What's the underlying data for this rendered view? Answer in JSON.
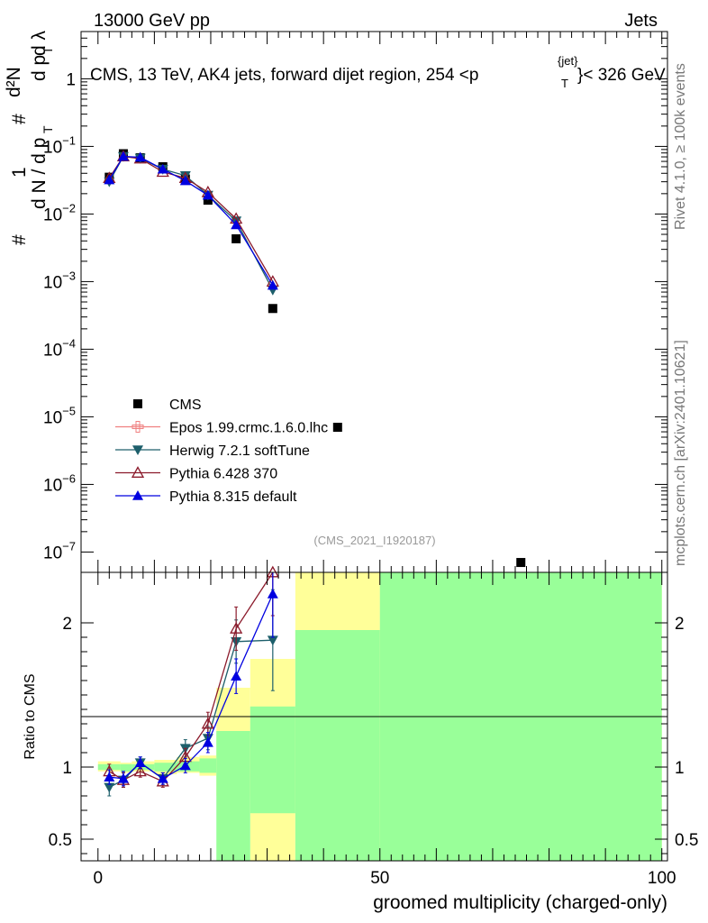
{
  "header": {
    "energy_label": "13000 GeV pp",
    "category_label": "Jets"
  },
  "side_labels": {
    "rivet": "Rivet 4.1.0, ≥ 100k events",
    "mcplots": "mcplots.cern.ch [arXiv:2401.10621]"
  },
  "chart_data": [
    {
      "type": "scatter",
      "panel": "main",
      "title": "CMS, 13 TeV, AK4 jets, forward dijet region, 254 <p",
      "title_sup": "{jet}",
      "title_sub": "T",
      "title_end": "}< 326 GeV",
      "watermark": "(CMS_2021_I1920187)",
      "ylabel": "1/N dN/dλ",
      "yscale": "log",
      "ylim": [
        5e-08,
        5
      ],
      "xlim": [
        -3,
        101
      ],
      "yticks": [
        {
          "value": 1e-07,
          "base": "10",
          "exp": "−7"
        },
        {
          "value": 1e-06,
          "base": "10",
          "exp": "−6"
        },
        {
          "value": 1e-05,
          "base": "10",
          "exp": "−5"
        },
        {
          "value": 0.0001,
          "base": "10",
          "exp": "−4"
        },
        {
          "value": 0.001,
          "base": "10",
          "exp": "−3"
        },
        {
          "value": 0.01,
          "base": "10",
          "exp": "−2"
        },
        {
          "value": 0.1,
          "base": "10",
          "exp": "−1"
        },
        {
          "value": 1,
          "base": "1",
          "exp": ""
        }
      ],
      "legend": [
        {
          "label": "CMS",
          "color": "#000000",
          "marker": "square"
        },
        {
          "label": "Epos 1.99.crmc.1.6.0.lhc",
          "color": "#f08080",
          "marker": "cross"
        },
        {
          "label": "Herwig 7.2.1 softTune",
          "color": "#1d5f6b",
          "marker": "triangle-down"
        },
        {
          "label": "Pythia 6.428 370",
          "color": "#8b1a2b",
          "marker": "triangle-open"
        },
        {
          "label": "Pythia 8.315 default",
          "color": "#0000e0",
          "marker": "triangle-up"
        }
      ],
      "series": [
        {
          "name": "CMS",
          "x": [
            2,
            4.5,
            7.5,
            11.5,
            15.5,
            19.5,
            24.5,
            31,
            42.5,
            75
          ],
          "y": [
            0.035,
            0.078,
            0.068,
            0.05,
            0.033,
            0.016,
            0.0043,
            0.0004,
            7e-06,
            7e-08
          ]
        },
        {
          "name": "Herwig 7.2.1 softTune",
          "x": [
            2,
            4.5,
            7.5,
            11.5,
            15.5,
            19.5,
            24.5,
            31
          ],
          "y": [
            0.03,
            0.071,
            0.067,
            0.046,
            0.037,
            0.019,
            0.0079,
            0.00075
          ]
        },
        {
          "name": "Pythia 6.428 370",
          "x": [
            2,
            4.5,
            7.5,
            11.5,
            15.5,
            19.5,
            24.5,
            31
          ],
          "y": [
            0.034,
            0.071,
            0.066,
            0.042,
            0.034,
            0.021,
            0.0085,
            0.001
          ]
        },
        {
          "name": "Pythia 8.315 default",
          "x": [
            2,
            4.5,
            7.5,
            11.5,
            15.5,
            19.5,
            24.5,
            31
          ],
          "y": [
            0.032,
            0.071,
            0.069,
            0.046,
            0.031,
            0.019,
            0.0069,
            0.00088
          ]
        }
      ]
    },
    {
      "type": "line",
      "panel": "ratio",
      "ylabel": "Ratio to CMS",
      "xlabel": "groomed multiplicity (charged-only)",
      "xlim": [
        -3,
        101
      ],
      "ylim": [
        0.35,
        2.35
      ],
      "xticks": [
        0,
        50,
        100
      ],
      "yticks": [
        0.5,
        1,
        2
      ],
      "bands": [
        {
          "x0": 0,
          "x1": 4,
          "yellow": [
            0.97,
            1.04
          ],
          "green": [
            0.98,
            1.02
          ]
        },
        {
          "x0": 4,
          "x1": 6,
          "yellow": [
            0.96,
            1.03
          ],
          "green": [
            0.97,
            1.02
          ]
        },
        {
          "x0": 6,
          "x1": 10,
          "yellow": [
            0.97,
            1.04
          ],
          "green": [
            0.98,
            1.02
          ]
        },
        {
          "x0": 10,
          "x1": 14,
          "yellow": [
            0.95,
            1.05
          ],
          "green": [
            0.97,
            1.03
          ]
        },
        {
          "x0": 14,
          "x1": 18,
          "yellow": [
            0.96,
            1.07
          ],
          "green": [
            0.97,
            1.04
          ]
        },
        {
          "x0": 18,
          "x1": 21,
          "yellow": [
            0.94,
            1.08
          ],
          "green": [
            0.96,
            1.06
          ]
        },
        {
          "x0": 21,
          "x1": 27,
          "yellow": [
            0.8,
            1.55
          ],
          "green": [
            0.35,
            1.25
          ]
        },
        {
          "x0": 27,
          "x1": 35,
          "yellow": [
            0.35,
            1.75
          ],
          "green": [
            0.68,
            1.42
          ]
        },
        {
          "x0": 35,
          "x1": 50,
          "yellow": [
            0.35,
            2.35
          ],
          "green": [
            0.35,
            1.95
          ]
        },
        {
          "x0": 50,
          "x1": 100,
          "yellow": [
            0.35,
            2.35
          ],
          "green": [
            0.35,
            2.35
          ]
        }
      ],
      "series": [
        {
          "name": "Herwig 7.2.1 softTune",
          "x": [
            2,
            4.5,
            7.5,
            11.5,
            15.5,
            19.5,
            24.5,
            31
          ],
          "y": [
            0.86,
            0.91,
            1.03,
            0.92,
            1.13,
            1.2,
            1.87,
            1.88
          ],
          "err": [
            0.06,
            0.05,
            0.04,
            0.04,
            0.06,
            0.08,
            0.15,
            0.35
          ]
        },
        {
          "name": "Pythia 6.428 370",
          "x": [
            2,
            4.5,
            7.5,
            11.5,
            15.5,
            19.5,
            24.5,
            31
          ],
          "y": [
            0.97,
            0.91,
            0.97,
            0.9,
            1.07,
            1.3,
            1.96,
            2.35
          ],
          "err": [
            0.05,
            0.05,
            0.04,
            0.04,
            0.06,
            0.08,
            0.15,
            0.3
          ]
        },
        {
          "name": "Pythia 8.315 default",
          "x": [
            2,
            4.5,
            7.5,
            11.5,
            15.5,
            19.5,
            24.5,
            31
          ],
          "y": [
            0.93,
            0.92,
            1.03,
            0.92,
            1.01,
            1.17,
            1.63,
            2.2
          ],
          "err": [
            0.05,
            0.05,
            0.04,
            0.04,
            0.05,
            0.07,
            0.12,
            0.3
          ]
        }
      ]
    }
  ]
}
